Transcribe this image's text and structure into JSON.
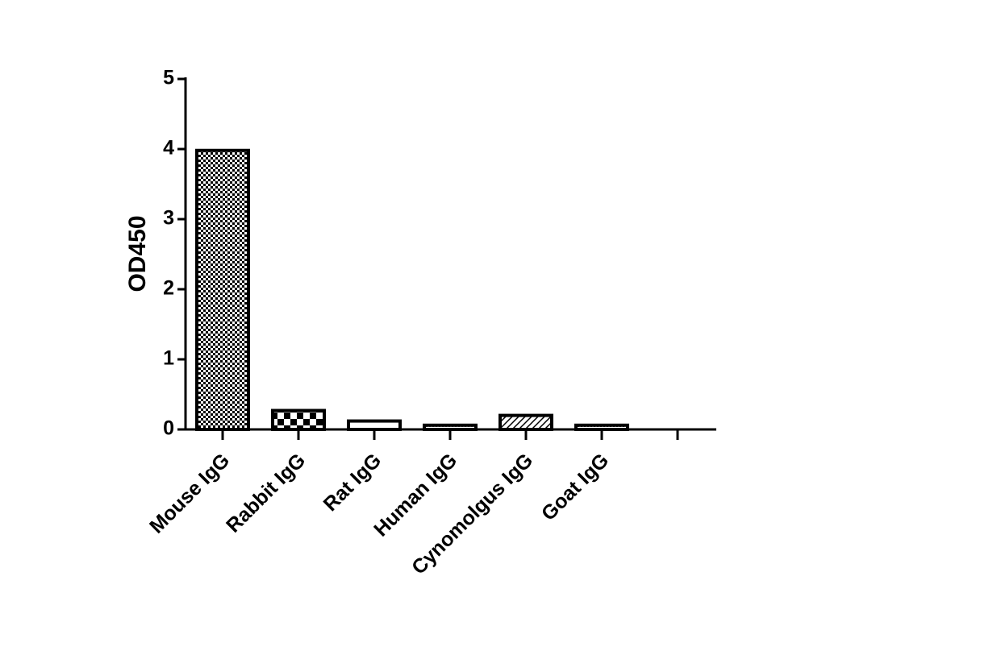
{
  "chart_data": {
    "type": "bar",
    "y_label": "OD450",
    "categories": [
      "Mouse IgG",
      "Rabbit IgG",
      "Rat IgG",
      "Human IgG",
      "Cynomolgus IgG",
      "Goat IgG",
      null
    ],
    "values": [
      3.98,
      0.27,
      0.12,
      0.06,
      0.2,
      0.06,
      null
    ],
    "color": "#000000",
    "ylim": [
      0,
      5
    ],
    "yticks": [
      0,
      1,
      2,
      3,
      4,
      5
    ],
    "grid": false
  }
}
